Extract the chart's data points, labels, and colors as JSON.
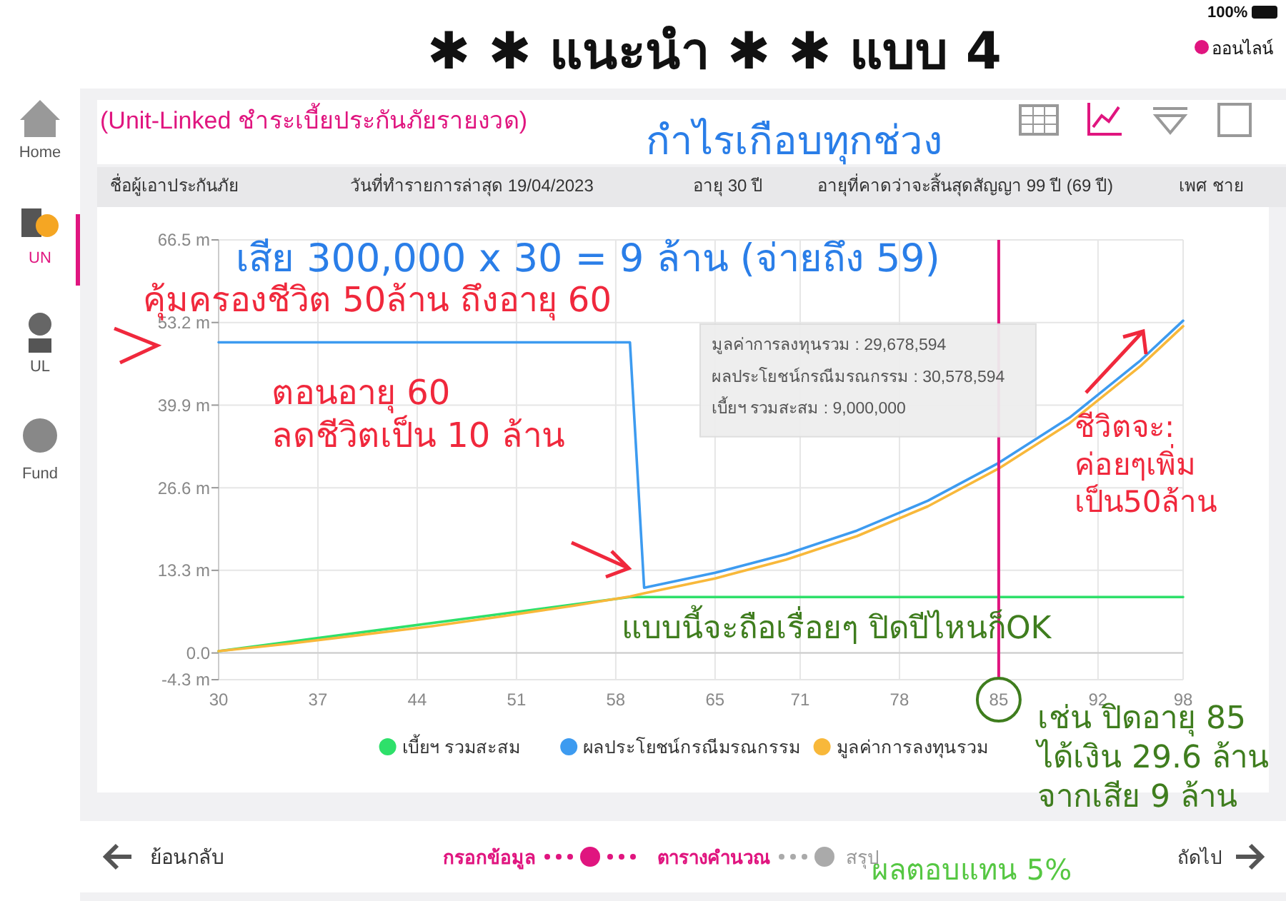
{
  "chart_data": {
    "type": "line",
    "title": "(Unit-Linked ชำระเบี้ยประกันภัยรายงวด)",
    "xlim": [
      30,
      98
    ],
    "xticks": [
      30,
      37,
      44,
      51,
      58,
      65,
      71,
      78,
      85,
      92,
      98
    ],
    "ylim": [
      -4.3,
      66.5
    ],
    "yticks": [
      {
        "value": -4.3,
        "label": "-4.3 m"
      },
      {
        "value": 0,
        "label": "0.0"
      },
      {
        "value": 13.3,
        "label": "13.3 m"
      },
      {
        "value": 26.6,
        "label": "26.6 m"
      },
      {
        "value": 39.9,
        "label": "39.9 m"
      },
      {
        "value": 53.2,
        "label": "53.2 m"
      },
      {
        "value": 66.5,
        "label": "66.5 m"
      }
    ],
    "grid": true,
    "legend": "bottom",
    "marker": "none",
    "line_style": "solid",
    "series": [
      {
        "name": "เบี้ยฯ รวมสะสม",
        "color": "#2ee06a",
        "x": [
          30,
          59,
          98
        ],
        "values": [
          0.3,
          9.0,
          9.0
        ]
      },
      {
        "name": "ผลประโยชน์กรณีมรณกรรม",
        "color": "#3d9bf0",
        "x": [
          30,
          59,
          60,
          65,
          70,
          75,
          80,
          85,
          90,
          95,
          98
        ],
        "values": [
          50,
          50,
          10.5,
          12.9,
          15.9,
          19.7,
          24.5,
          30.6,
          37.9,
          47.1,
          53.5
        ]
      },
      {
        "name": "มูลค่าการลงทุนรวม",
        "color": "#f8b83a",
        "x": [
          30,
          35,
          40,
          45,
          50,
          55,
          59,
          60,
          65,
          70,
          75,
          80,
          85,
          90,
          95,
          98
        ],
        "values": [
          0.3,
          1.5,
          2.9,
          4.3,
          5.9,
          7.6,
          9.1,
          9.6,
          12.0,
          15.0,
          18.8,
          23.6,
          29.7,
          37.0,
          46.2,
          52.6
        ]
      }
    ],
    "ref_lines": [
      {
        "axis": "x",
        "value": 85,
        "color": "#e0157f"
      }
    ],
    "annotations": [
      "✱ ✱ แนะนำ ✱ ✱ แบบ 4",
      "กำไรเกือบทุกช่วง",
      "เสีย 300,000 x 30 = 9 ล้าน (จ่ายถึง 59)",
      "คุ้มครองชีวิต 50ล้าน ถึงอายุ 60",
      "ตอนอายุ 60\nลดชีวิตเป็น 10 ล้าน",
      "ชีวิตจะ:\nค่อยๆเพิ่ม\nเป็น50ล้าน",
      "แบบนี้จะถือเรื่อยๆ ปิดปีไหนก็OK",
      "เช่น ปิดอายุ 85\nได้เงิน 29.6 ล้าน\nจากเสีย 9 ล้าน",
      "ผลตอบแทน 5%",
      "มูลค่าการลงทุนรวม : 29,678,594\nผลประโยชน์กรณีมรณกรรม : 30,578,594\nเบี้ยฯ รวมสะสม : 9,000,000",
      "ชื่อผู้เอาประกันภัย",
      "วันที่ทำรายการล่าสุด 19/04/2023",
      "อายุ 30 ปี",
      "อายุที่คาดว่าจะสิ้นสุดสัญญา 99 ปี (69 ปี)",
      "เพศ ชาย",
      "Home",
      "UN",
      "UL",
      "Fund",
      "ย้อนกลับ",
      "กรอกข้อมูล",
      "ตารางคำนวณ",
      "สรุป",
      "ถัดไป",
      "100%",
      "ออนไลน์"
    ]
  }
}
